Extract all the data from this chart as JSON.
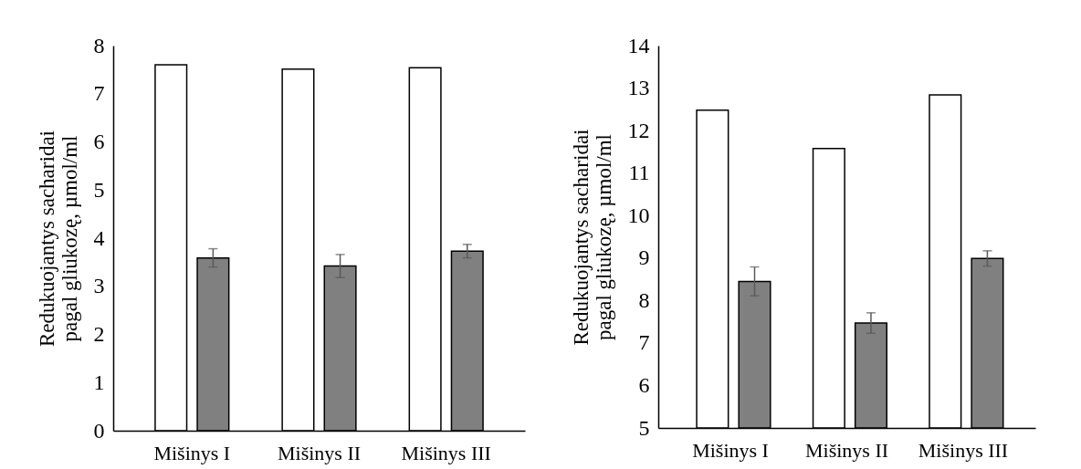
{
  "chart_data": [
    {
      "type": "bar",
      "ylabel": "Redukuojantys sacharidai\npagal gliukozę, µmol/ml",
      "categories": [
        "Mišinys I",
        "Mišinys II",
        "Mišinys III"
      ],
      "ylim": [
        0,
        8
      ],
      "yticks": [
        0,
        1,
        2,
        3,
        4,
        5,
        6,
        7,
        8
      ],
      "grid": false,
      "legend": false,
      "series": [
        {
          "color": "#ffffff",
          "values": [
            7.6,
            7.51,
            7.54
          ]
        },
        {
          "color": "#808080",
          "values": [
            3.59,
            3.42,
            3.73
          ],
          "errors": [
            0.19,
            0.24,
            0.14
          ]
        }
      ]
    },
    {
      "type": "bar",
      "ylabel": "Redukuojantys sacharidai\npagal gliukozę, µmol/ml",
      "categories": [
        "Mišinys I",
        "Mišinys II",
        "Mišinys III"
      ],
      "ylim": [
        5,
        14
      ],
      "yticks": [
        5,
        6,
        7,
        8,
        9,
        10,
        11,
        12,
        13,
        14
      ],
      "grid": false,
      "legend": false,
      "series": [
        {
          "color": "#ffffff",
          "values": [
            12.48,
            11.58,
            12.84
          ]
        },
        {
          "color": "#808080",
          "values": [
            8.45,
            7.47,
            8.99
          ],
          "errors": [
            0.34,
            0.24,
            0.18
          ]
        }
      ]
    }
  ]
}
